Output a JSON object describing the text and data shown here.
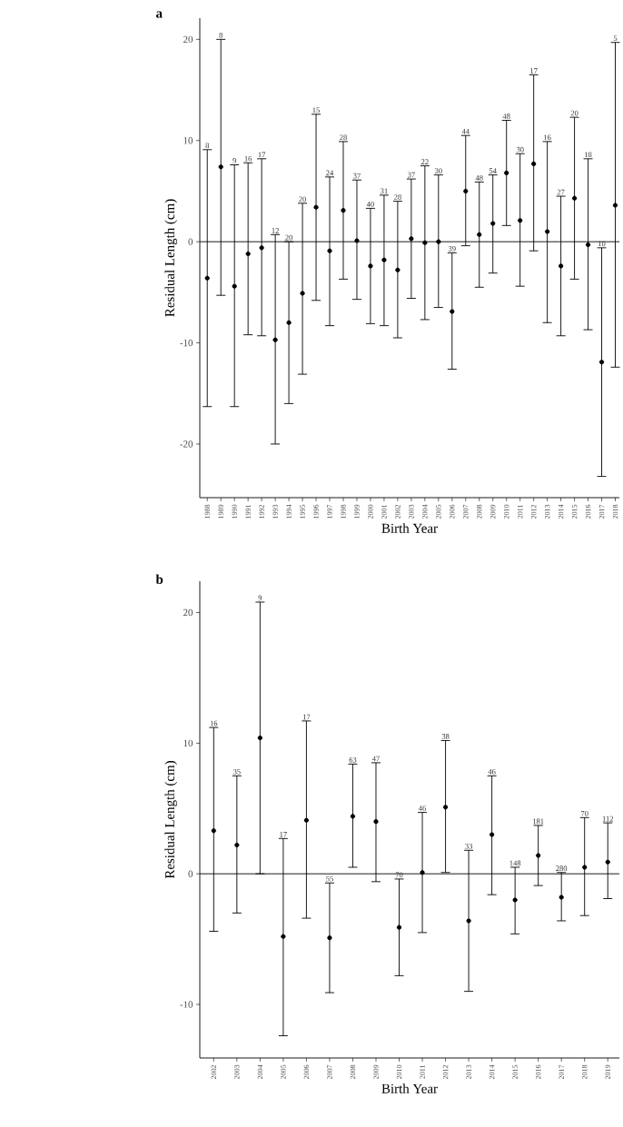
{
  "chart_data": [
    {
      "type": "scatter",
      "title": "a",
      "xlabel": "Birth Year",
      "ylabel": "Residual Length (cm)",
      "color": "#000000",
      "marker": "circle",
      "categories": [
        "1988",
        "1989",
        "1990",
        "1991",
        "1992",
        "1993",
        "1994",
        "1995",
        "1996",
        "1997",
        "1998",
        "1999",
        "2000",
        "2001",
        "2002",
        "2003",
        "2004",
        "2005",
        "2006",
        "2007",
        "2008",
        "2009",
        "2010",
        "2011",
        "2012",
        "2013",
        "2014",
        "2015",
        "2016",
        "2017",
        "2018"
      ],
      "values": [
        -3.6,
        7.4,
        -4.4,
        -1.2,
        -0.6,
        -9.7,
        -8.0,
        -5.1,
        3.4,
        -0.9,
        3.1,
        0.1,
        -2.4,
        -1.8,
        -2.8,
        0.3,
        -0.1,
        0.0,
        -6.9,
        5.0,
        0.7,
        1.8,
        6.8,
        2.1,
        7.7,
        1.0,
        -2.4,
        4.3,
        -0.3,
        -11.9,
        3.6
      ],
      "errors": [
        [
          -16.3,
          9.1
        ],
        [
          -5.3,
          20.0
        ],
        [
          -16.3,
          7.6
        ],
        [
          -9.2,
          7.8
        ],
        [
          -9.3,
          8.2
        ],
        [
          -20.0,
          0.7
        ],
        [
          -16.0,
          0.0
        ],
        [
          -13.1,
          3.8
        ],
        [
          -5.8,
          12.6
        ],
        [
          -8.3,
          6.4
        ],
        [
          -3.7,
          9.9
        ],
        [
          -5.7,
          6.1
        ],
        [
          -8.1,
          3.3
        ],
        [
          -8.3,
          4.6
        ],
        [
          -9.5,
          4.0
        ],
        [
          -5.6,
          6.2
        ],
        [
          -7.7,
          7.5
        ],
        [
          -6.5,
          6.6
        ],
        [
          -12.6,
          -1.1
        ],
        [
          -0.4,
          10.5
        ],
        [
          -4.5,
          5.9
        ],
        [
          -3.1,
          6.6
        ],
        [
          1.6,
          12.0
        ],
        [
          -4.4,
          8.7
        ],
        [
          -0.9,
          16.5
        ],
        [
          -8.0,
          9.9
        ],
        [
          -9.3,
          4.5
        ],
        [
          -3.7,
          12.3
        ],
        [
          -8.7,
          8.2
        ],
        [
          -23.2,
          -0.6
        ],
        [
          -12.4,
          19.7
        ]
      ],
      "ylim": [
        -25.3,
        22.1
      ],
      "yticks": [
        -20,
        -10,
        0,
        10,
        20
      ],
      "ref_lines": [
        {
          "axis": "y",
          "value": 0
        }
      ],
      "annotations": [
        {
          "text": "8",
          "x": "1988",
          "y": 9.1
        },
        {
          "text": "8",
          "x": "1989",
          "y": 20.0
        },
        {
          "text": "9",
          "x": "1990",
          "y": 7.6
        },
        {
          "text": "16",
          "x": "1991",
          "y": 7.8
        },
        {
          "text": "17",
          "x": "1992",
          "y": 8.2
        },
        {
          "text": "12",
          "x": "1993",
          "y": 0.7
        },
        {
          "text": "20",
          "x": "1994",
          "y": 0.0
        },
        {
          "text": "20",
          "x": "1995",
          "y": 3.8
        },
        {
          "text": "15",
          "x": "1996",
          "y": 12.6
        },
        {
          "text": "24",
          "x": "1997",
          "y": 6.4
        },
        {
          "text": "28",
          "x": "1998",
          "y": 9.9
        },
        {
          "text": "37",
          "x": "1999",
          "y": 6.1
        },
        {
          "text": "40",
          "x": "2000",
          "y": 3.3
        },
        {
          "text": "31",
          "x": "2001",
          "y": 4.6
        },
        {
          "text": "28",
          "x": "2002",
          "y": 4.0
        },
        {
          "text": "37",
          "x": "2003",
          "y": 6.2
        },
        {
          "text": "22",
          "x": "2004",
          "y": 7.5
        },
        {
          "text": "30",
          "x": "2005",
          "y": 6.6
        },
        {
          "text": "39",
          "x": "2006",
          "y": -1.1
        },
        {
          "text": "44",
          "x": "2007",
          "y": 10.5
        },
        {
          "text": "48",
          "x": "2008",
          "y": 5.9
        },
        {
          "text": "54",
          "x": "2009",
          "y": 6.6
        },
        {
          "text": "48",
          "x": "2010",
          "y": 12.0
        },
        {
          "text": "30",
          "x": "2011",
          "y": 8.7
        },
        {
          "text": "17",
          "x": "2012",
          "y": 16.5
        },
        {
          "text": "16",
          "x": "2013",
          "y": 9.9
        },
        {
          "text": "27",
          "x": "2014",
          "y": 4.5
        },
        {
          "text": "20",
          "x": "2015",
          "y": 12.3
        },
        {
          "text": "18",
          "x": "2016",
          "y": 8.2
        },
        {
          "text": "10",
          "x": "2017",
          "y": -0.6
        },
        {
          "text": "5",
          "x": "2018",
          "y": 19.7
        }
      ]
    },
    {
      "type": "scatter",
      "title": "b",
      "xlabel": "Birth Year",
      "ylabel": "Residual Length (cm)",
      "color": "#000000",
      "marker": "circle",
      "categories": [
        "2002",
        "2003",
        "2004",
        "2005",
        "2006",
        "2007",
        "2008",
        "2009",
        "2010",
        "2011",
        "2012",
        "2013",
        "2014",
        "2015",
        "2016",
        "2017",
        "2018",
        "2019"
      ],
      "values": [
        3.3,
        2.2,
        10.4,
        -4.8,
        4.1,
        -4.9,
        4.4,
        4.0,
        -4.1,
        0.1,
        5.1,
        -3.6,
        3.0,
        -2.0,
        1.4,
        -1.8,
        0.5,
        0.9
      ],
      "errors": [
        [
          -4.4,
          11.2
        ],
        [
          -3.0,
          7.5
        ],
        [
          0.0,
          20.8
        ],
        [
          -12.4,
          2.7
        ],
        [
          -3.4,
          11.7
        ],
        [
          -9.1,
          -0.7
        ],
        [
          0.5,
          8.4
        ],
        [
          -0.6,
          8.5
        ],
        [
          -7.8,
          -0.4
        ],
        [
          -4.5,
          4.7
        ],
        [
          0.1,
          10.2
        ],
        [
          -9.0,
          1.8
        ],
        [
          -1.6,
          7.5
        ],
        [
          -4.6,
          0.5
        ],
        [
          -0.9,
          3.7
        ],
        [
          -3.6,
          0.1
        ],
        [
          -3.2,
          4.3
        ],
        [
          -1.9,
          3.9
        ]
      ],
      "ylim": [
        -14.1,
        22.4
      ],
      "yticks": [
        -10,
        0,
        10,
        20
      ],
      "ref_lines": [
        {
          "axis": "y",
          "value": 0
        }
      ],
      "annotations": [
        {
          "text": "16",
          "x": "2002",
          "y": 11.2
        },
        {
          "text": "35",
          "x": "2003",
          "y": 7.5
        },
        {
          "text": "9",
          "x": "2004",
          "y": 20.8
        },
        {
          "text": "17",
          "x": "2005",
          "y": 2.7
        },
        {
          "text": "17",
          "x": "2006",
          "y": 11.7
        },
        {
          "text": "55",
          "x": "2007",
          "y": -0.7
        },
        {
          "text": "63",
          "x": "2008",
          "y": 8.4
        },
        {
          "text": "47",
          "x": "2009",
          "y": 8.5
        },
        {
          "text": "70",
          "x": "2010",
          "y": -0.4
        },
        {
          "text": "46",
          "x": "2011",
          "y": 4.7
        },
        {
          "text": "38",
          "x": "2012",
          "y": 10.2
        },
        {
          "text": "33",
          "x": "2013",
          "y": 1.8
        },
        {
          "text": "46",
          "x": "2014",
          "y": 7.5
        },
        {
          "text": "148",
          "x": "2015",
          "y": 0.5
        },
        {
          "text": "181",
          "x": "2016",
          "y": 3.7
        },
        {
          "text": "280",
          "x": "2017",
          "y": 0.1
        },
        {
          "text": "70",
          "x": "2018",
          "y": 4.3
        },
        {
          "text": "112",
          "x": "2019",
          "y": 3.9
        }
      ]
    }
  ]
}
